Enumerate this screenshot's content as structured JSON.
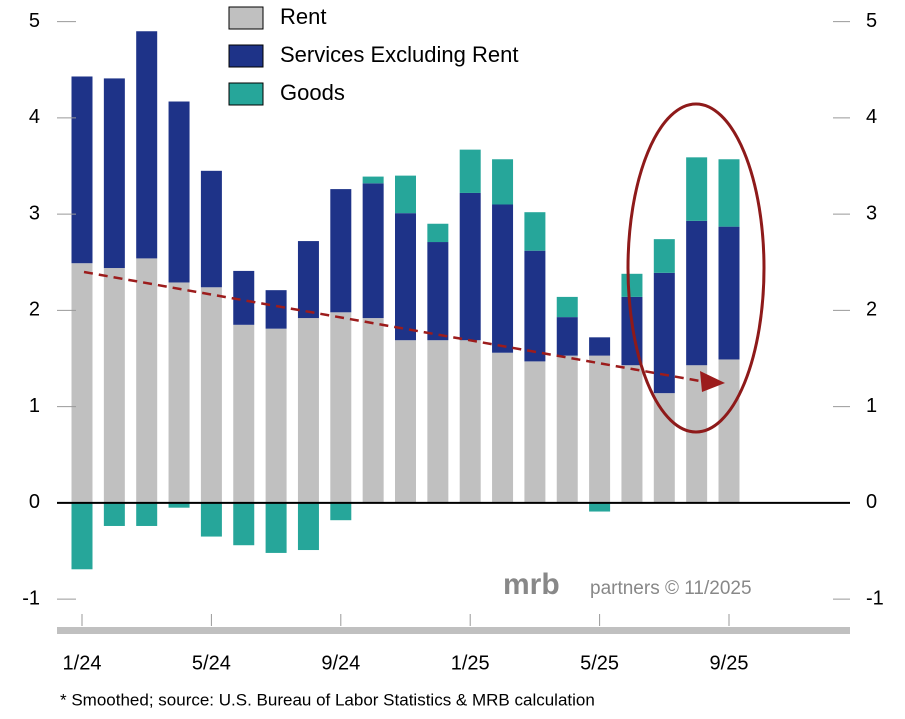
{
  "chart_data": {
    "type": "bar",
    "stacked": true,
    "categories": [
      "1/24",
      null,
      null,
      null,
      "5/24",
      null,
      null,
      null,
      "9/24",
      null,
      null,
      null,
      "1/25",
      null,
      null,
      null,
      "5/25",
      null,
      null,
      null,
      "9/25"
    ],
    "series": [
      {
        "name": "Rent",
        "color": "#c0c0c0",
        "values": [
          2.49,
          2.44,
          2.54,
          2.29,
          2.24,
          1.85,
          1.81,
          1.92,
          1.98,
          1.92,
          1.69,
          1.69,
          1.69,
          1.56,
          1.47,
          1.53,
          1.53,
          1.43,
          1.14,
          1.43,
          1.49
        ]
      },
      {
        "name": "Services Excluding Rent",
        "color": "#1e3388",
        "values": [
          1.94,
          1.97,
          2.36,
          1.88,
          1.21,
          0.56,
          0.4,
          0.8,
          1.28,
          1.4,
          1.32,
          1.02,
          1.53,
          1.54,
          1.15,
          0.4,
          0.19,
          0.71,
          1.25,
          1.5,
          1.38
        ]
      },
      {
        "name": "Goods",
        "color": "#26a69a",
        "values": [
          -0.69,
          -0.24,
          -0.24,
          -0.05,
          -0.35,
          -0.44,
          -0.52,
          -0.49,
          -0.18,
          0.07,
          0.39,
          0.19,
          0.45,
          0.47,
          0.4,
          0.21,
          -0.09,
          0.24,
          0.35,
          0.66,
          0.7
        ]
      }
    ],
    "ylim": [
      -1.3,
      5.1
    ],
    "yticks": [
      -1,
      0,
      1,
      2,
      3,
      4,
      5
    ],
    "y2lim": [
      -1.3,
      5.1
    ],
    "y2ticks": [
      -1,
      0,
      1,
      2,
      3,
      4,
      5
    ],
    "legend": "top",
    "logo": "mrb",
    "logo_suffix": "partners © 11/2025",
    "footnote": "*  Smoothed; source: U.S. Bureau of Labor Statistics & MRB calculation"
  }
}
